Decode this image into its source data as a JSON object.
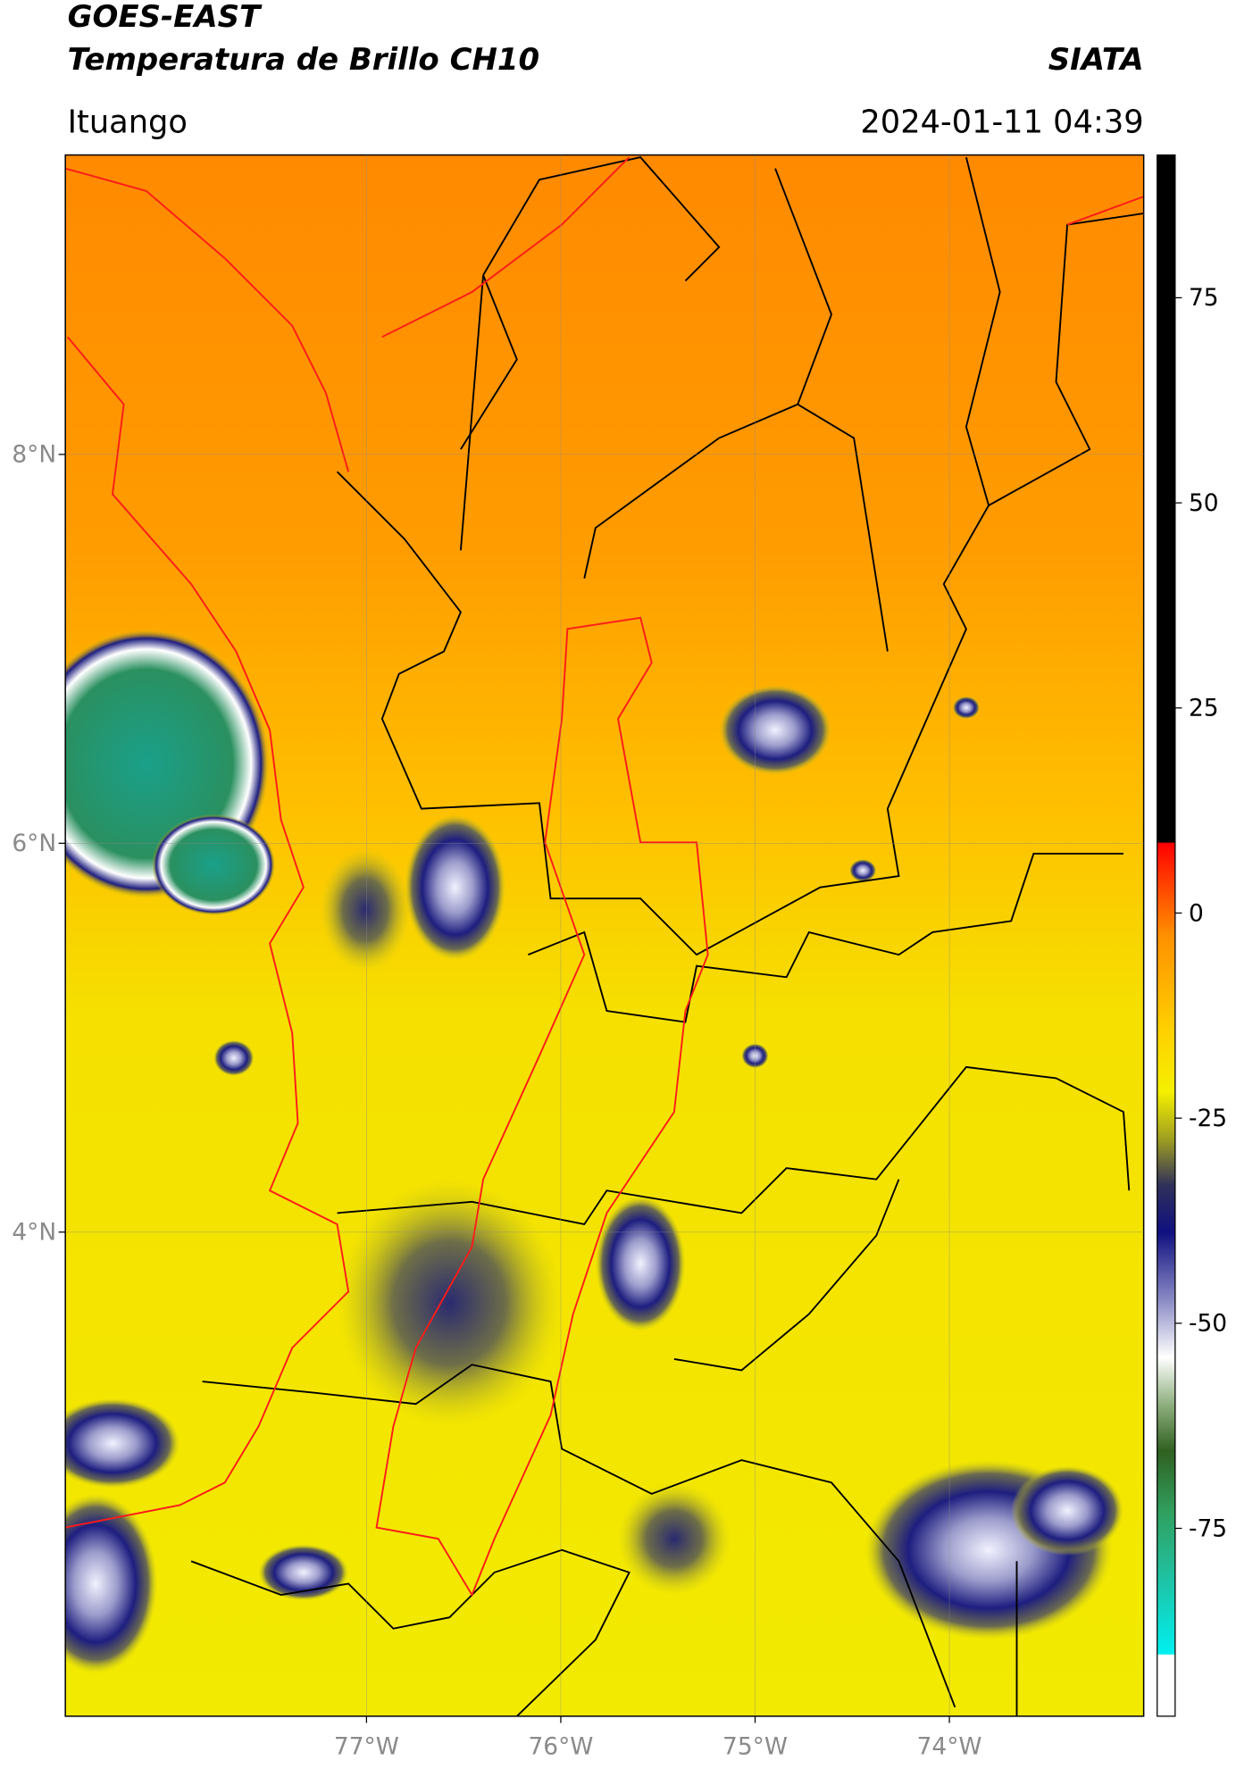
{
  "header": {
    "title": "GOES-EAST",
    "subtitle": "Temperatura de Brillo CH10",
    "organization": "SIATA",
    "location": "Ituango",
    "datetime": "2024-01-11 04:39"
  },
  "map": {
    "xlim": [
      -78.55,
      -73.0
    ],
    "ylim": [
      1.51,
      9.54
    ],
    "xticks": [
      {
        "value": -77,
        "label": "77°W"
      },
      {
        "value": -76,
        "label": "76°W"
      },
      {
        "value": -75,
        "label": "75°W"
      },
      {
        "value": -74,
        "label": "74°W"
      }
    ],
    "yticks": [
      {
        "value": 8,
        "label": "8°N"
      },
      {
        "value": 6,
        "label": "6°N"
      },
      {
        "value": 4,
        "label": "4°N"
      }
    ],
    "grid": true
  },
  "colorbar": {
    "lim": [
      -97.9,
      92.4
    ],
    "ticks": [
      75,
      50,
      25,
      0,
      -25,
      -50,
      -75
    ]
  }
}
